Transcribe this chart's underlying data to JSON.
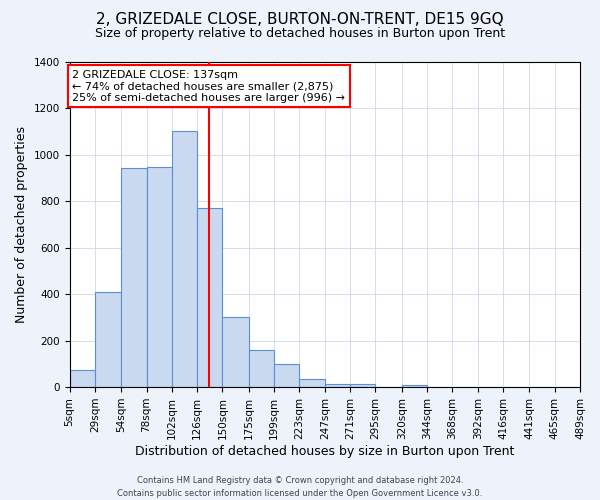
{
  "title": "2, GRIZEDALE CLOSE, BURTON-ON-TRENT, DE15 9GQ",
  "subtitle": "Size of property relative to detached houses in Burton upon Trent",
  "xlabel": "Distribution of detached houses by size in Burton upon Trent",
  "ylabel": "Number of detached properties",
  "footnote1": "Contains HM Land Registry data © Crown copyright and database right 2024.",
  "footnote2": "Contains public sector information licensed under the Open Government Licence v3.0.",
  "annotation_line1": "2 GRIZEDALE CLOSE: 137sqm",
  "annotation_line2": "← 74% of detached houses are smaller (2,875)",
  "annotation_line3": "25% of semi-detached houses are larger (996) →",
  "bar_color": "#c9d9f0",
  "bar_edge_color": "#5b8fd4",
  "redline_x": 137,
  "bin_edges": [
    5,
    29,
    54,
    78,
    102,
    126,
    150,
    175,
    199,
    223,
    247,
    271,
    295,
    320,
    344,
    368,
    392,
    416,
    441,
    465,
    489
  ],
  "bin_labels": [
    "5sqm",
    "29sqm",
    "54sqm",
    "78sqm",
    "102sqm",
    "126sqm",
    "150sqm",
    "175sqm",
    "199sqm",
    "223sqm",
    "247sqm",
    "271sqm",
    "295sqm",
    "320sqm",
    "344sqm",
    "368sqm",
    "392sqm",
    "416sqm",
    "441sqm",
    "465sqm",
    "489sqm"
  ],
  "bar_heights": [
    75,
    410,
    940,
    945,
    1100,
    770,
    300,
    160,
    100,
    35,
    15,
    15,
    0,
    10,
    0,
    0,
    0,
    0,
    0,
    0
  ],
  "ylim": [
    0,
    1400
  ],
  "yticks": [
    0,
    200,
    400,
    600,
    800,
    1000,
    1200,
    1400
  ],
  "background_color": "#eef2fb",
  "plot_bg_color": "#ffffff",
  "grid_color": "#c8d0e0",
  "title_fontsize": 11,
  "subtitle_fontsize": 9,
  "ylabel_fontsize": 9,
  "xlabel_fontsize": 9,
  "tick_fontsize": 7.5,
  "annot_fontsize": 8,
  "footnote_fontsize": 6
}
